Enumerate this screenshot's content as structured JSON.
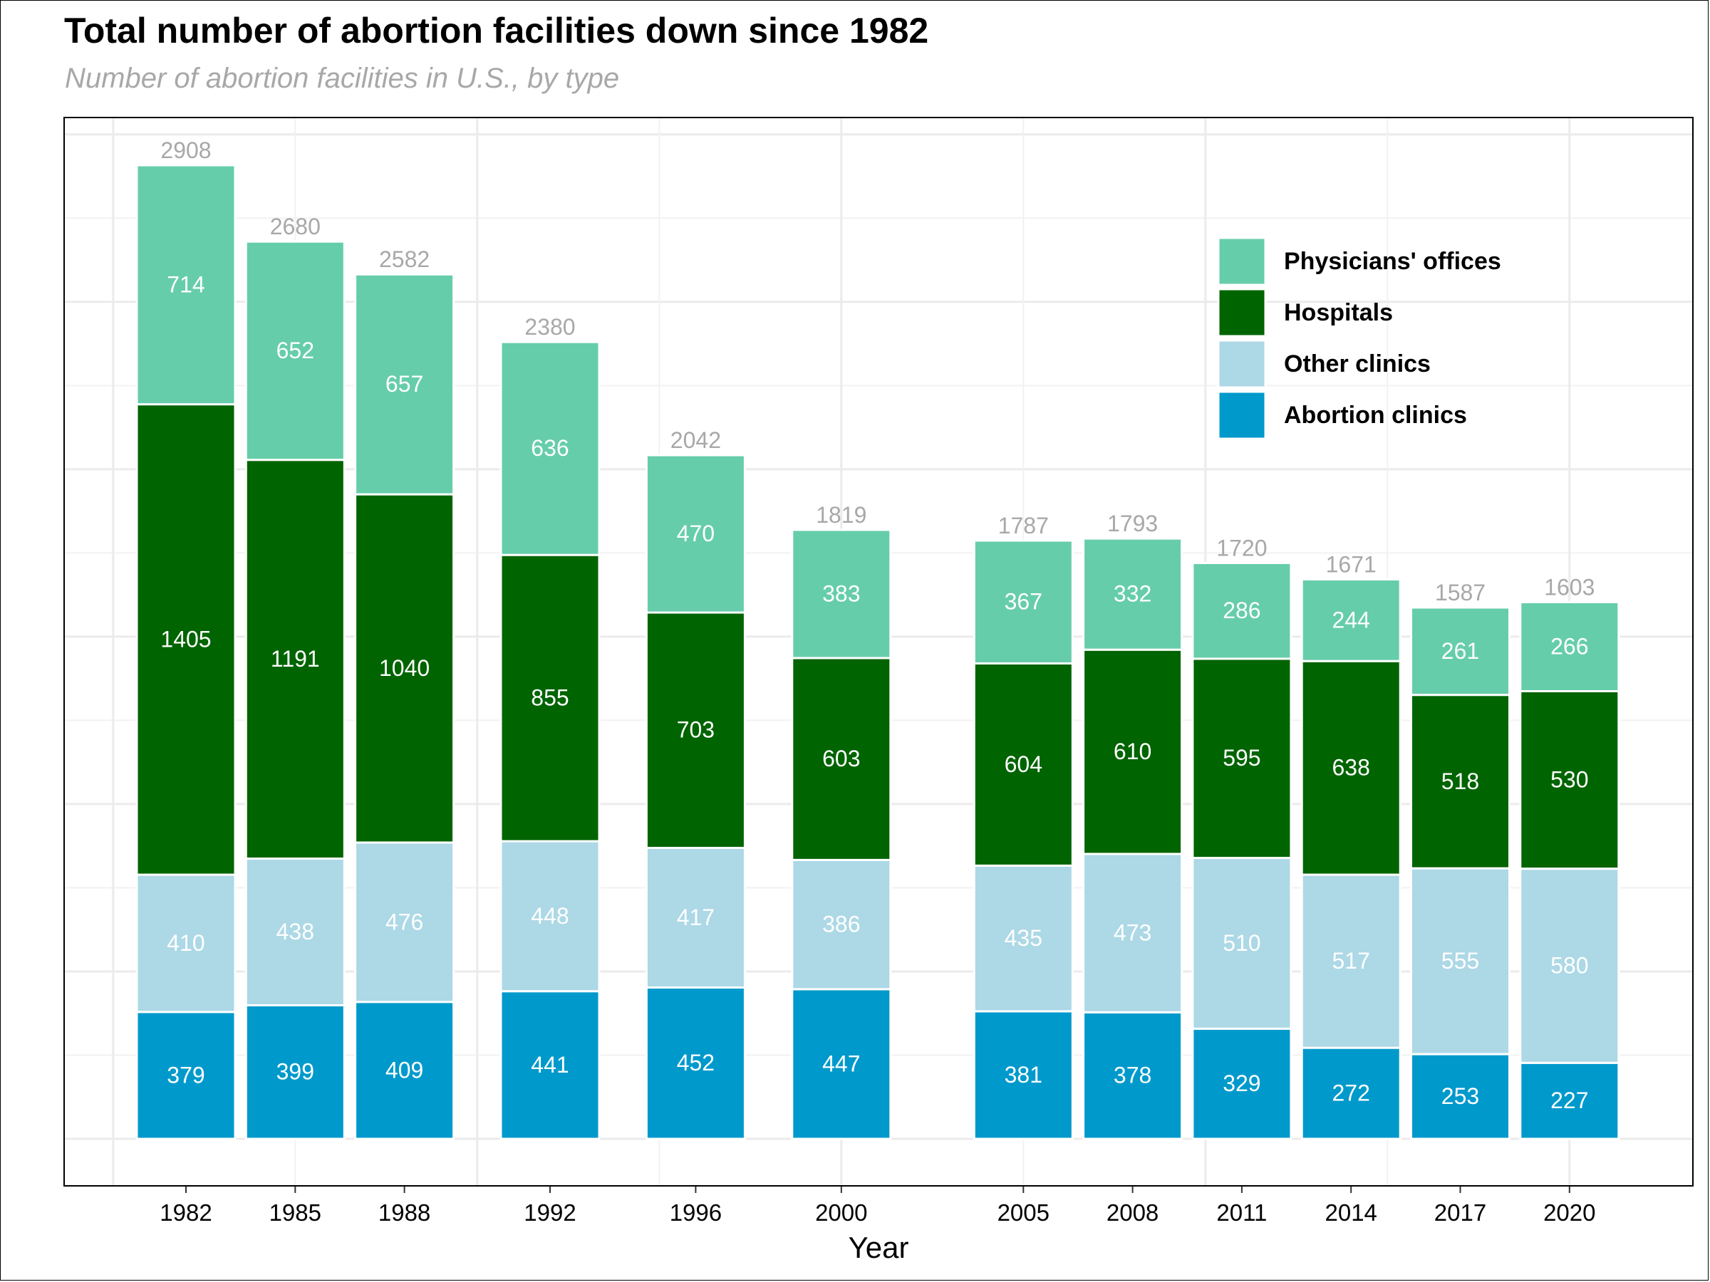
{
  "title": "Total number of abortion facilities down since 1982",
  "subtitle": "Number of abortion facilities in U.S., by type",
  "chart_data": {
    "type": "bar",
    "stacked": true,
    "categories": [
      "1982",
      "1985",
      "1988",
      "1992",
      "1996",
      "2000",
      "2005",
      "2008",
      "2011",
      "2014",
      "2017",
      "2020"
    ],
    "series": [
      {
        "name": "Abortion clinics",
        "color": "#0099cc",
        "values": [
          379,
          399,
          409,
          441,
          452,
          447,
          381,
          378,
          329,
          272,
          253,
          227
        ]
      },
      {
        "name": "Other clinics",
        "color": "#add8e6",
        "values": [
          410,
          438,
          476,
          448,
          417,
          386,
          435,
          473,
          510,
          517,
          555,
          580
        ]
      },
      {
        "name": "Hospitals",
        "color": "#006400",
        "values": [
          1405,
          1191,
          1040,
          855,
          703,
          603,
          604,
          610,
          595,
          638,
          518,
          530
        ]
      },
      {
        "name": "Physicians' offices",
        "color": "#66cdaa",
        "values": [
          714,
          652,
          657,
          636,
          470,
          383,
          367,
          332,
          286,
          244,
          261,
          266
        ]
      }
    ],
    "totals": [
      2908,
      2680,
      2582,
      2380,
      2042,
      1819,
      1787,
      1793,
      1720,
      1671,
      1587,
      1603
    ],
    "legend_order": [
      "Physicians' offices",
      "Hospitals",
      "Other clinics",
      "Abortion clinics"
    ],
    "xlabel": "Year",
    "ylabel": "",
    "ylim": [
      0,
      3000
    ],
    "x_axis_type": "year",
    "grid": true,
    "legend_position": "top-right"
  }
}
